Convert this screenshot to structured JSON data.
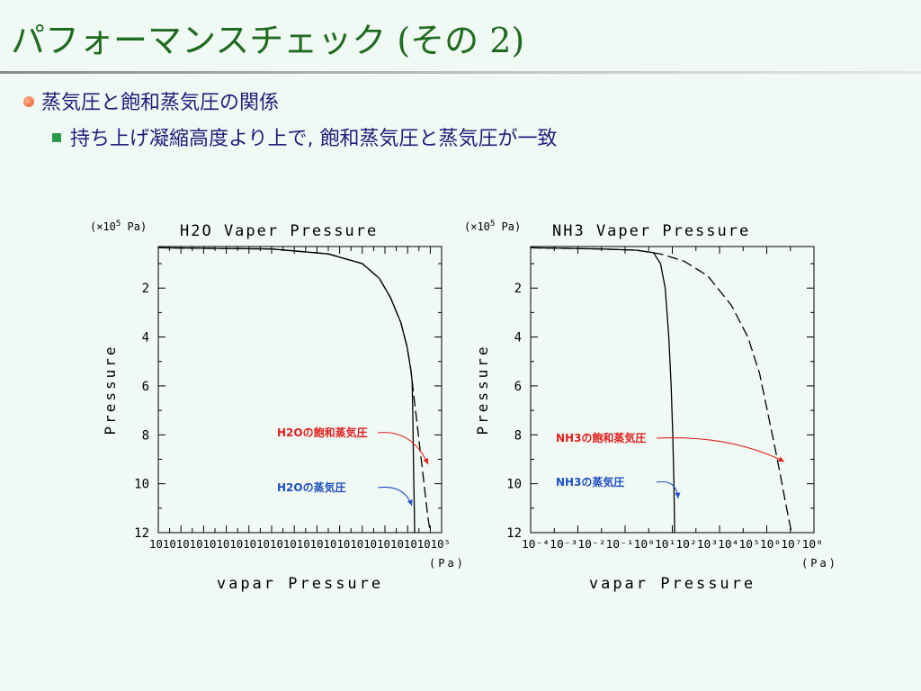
{
  "slide": {
    "title": "パフォーマンスチェック (その 2)",
    "bullet1": "蒸気圧と飽和蒸気圧の関係",
    "bullet2": "持ち上げ凝縮高度より上で, 飽和蒸気圧と蒸気圧が一致"
  },
  "colors": {
    "title": "#1f6b1f",
    "text": "#1f1f7a",
    "red": "#e02020",
    "blue": "#2050c0"
  },
  "chart_data": [
    {
      "id": "h2o",
      "type": "line",
      "title": "H2O  Vaper  Pressure",
      "unit_top": "(×10",
      "unit_top_exp": "5",
      "unit_top_tail": " Pa)",
      "xlabel": "vapar  Pressure",
      "ylabel": "Pressure",
      "xunit": "(Pa)",
      "x_scale": "log",
      "xlim_exp": [
        -20,
        5
      ],
      "ylim": [
        0.3,
        12
      ],
      "y_inverted": true,
      "yticks": [
        2,
        4,
        6,
        8,
        10,
        12
      ],
      "xtick_labels": "10101010101010101010101010101010101010101010⁵",
      "series": [
        {
          "name": "H2Oの飽和蒸気圧",
          "style": "dashed",
          "color": "#e02020",
          "points": [
            [
              -20,
              0.35
            ],
            [
              -10,
              0.4
            ],
            [
              -5,
              0.6
            ],
            [
              -2,
              1
            ],
            [
              -0.5,
              1.6
            ],
            [
              0.5,
              2.4
            ],
            [
              1.4,
              3.4
            ],
            [
              1.95,
              4.4
            ],
            [
              2.3,
              5.4
            ],
            [
              2.55,
              6.4
            ],
            [
              2.8,
              7.4
            ],
            [
              3.05,
              8.4
            ],
            [
              3.3,
              9.4
            ],
            [
              3.55,
              10.4
            ],
            [
              3.8,
              11.4
            ],
            [
              4,
              12
            ]
          ]
        },
        {
          "name": "H2Oの蒸気圧",
          "style": "solid",
          "color": "#2050c0",
          "points": [
            [
              -20,
              0.35
            ],
            [
              -10,
              0.4
            ],
            [
              -5,
              0.6
            ],
            [
              -2,
              1
            ],
            [
              -0.5,
              1.6
            ],
            [
              0.5,
              2.4
            ],
            [
              1.4,
              3.4
            ],
            [
              1.95,
              4.4
            ],
            [
              2.3,
              5.4
            ],
            [
              2.4,
              5.8
            ],
            [
              2.45,
              7
            ],
            [
              2.5,
              8.5
            ],
            [
              2.55,
              10
            ],
            [
              2.6,
              11.3
            ],
            [
              2.62,
              12
            ]
          ]
        }
      ]
    },
    {
      "id": "nh3",
      "type": "line",
      "title": "NH3  Vaper  Pressure",
      "unit_top": "(×10",
      "unit_top_exp": "5",
      "unit_top_tail": " Pa)",
      "xlabel": "vapar  Pressure",
      "ylabel": "Pressure",
      "xunit": "(Pa)",
      "x_scale": "log",
      "xlim_exp": [
        -4,
        8
      ],
      "ylim": [
        0.3,
        12
      ],
      "y_inverted": true,
      "yticks": [
        2,
        4,
        6,
        8,
        10,
        12
      ],
      "xtick_labels": "10⁻⁴10⁻³10⁻²10⁻¹10⁰10¹10²10³10⁴10⁵10⁶10⁷10⁸",
      "series": [
        {
          "name": "NH3の飽和蒸気圧",
          "style": "dashed",
          "color": "#e02020",
          "points": [
            [
              -4,
              0.35
            ],
            [
              -1,
              0.4
            ],
            [
              0.5,
              0.45
            ],
            [
              1.5,
              0.6
            ],
            [
              2.5,
              0.9
            ],
            [
              3.5,
              1.5
            ],
            [
              4.5,
              2.7
            ],
            [
              5.2,
              4
            ],
            [
              5.7,
              5.5
            ],
            [
              6,
              6.9
            ],
            [
              6.3,
              8.3
            ],
            [
              6.55,
              9.5
            ],
            [
              6.8,
              10.8
            ],
            [
              7.05,
              12
            ]
          ]
        },
        {
          "name": "NH3の蒸気圧",
          "style": "solid",
          "color": "#2050c0",
          "points": [
            [
              -4,
              0.35
            ],
            [
              -1,
              0.4
            ],
            [
              0.5,
              0.45
            ],
            [
              1.2,
              0.55
            ],
            [
              1.5,
              1
            ],
            [
              1.7,
              2
            ],
            [
              1.85,
              4
            ],
            [
              1.95,
              6
            ],
            [
              2.02,
              8
            ],
            [
              2.07,
              10
            ],
            [
              2.1,
              12
            ]
          ]
        }
      ]
    }
  ]
}
